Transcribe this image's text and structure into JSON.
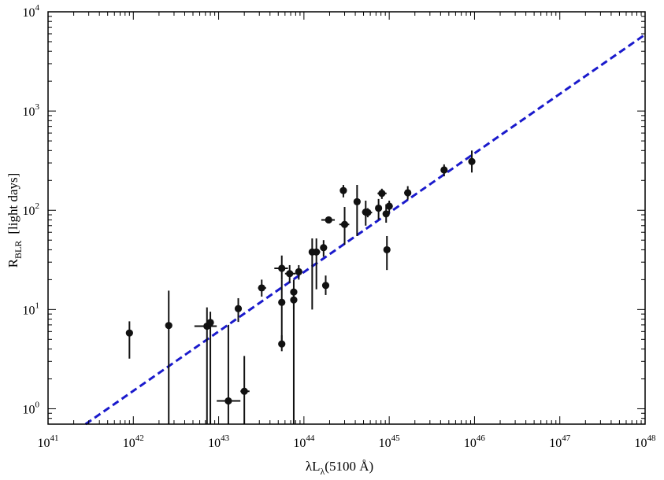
{
  "chart_data": {
    "type": "scatter",
    "x_scale": "log",
    "y_scale": "log",
    "xlim": [
      1e+41,
      1e+48
    ],
    "ylim": [
      0.7,
      10000
    ],
    "grid": false,
    "xlabel": {
      "main": "λL",
      "sub": "λ",
      "suffix": "(5100 Å)"
    },
    "ylabel": {
      "main": "R",
      "sub": "BLR",
      "suffix": "[light days]"
    },
    "x_ticks": [
      {
        "base": "10",
        "exp": "41",
        "value": 1e+41
      },
      {
        "base": "10",
        "exp": "42",
        "value": 1e+42
      },
      {
        "base": "10",
        "exp": "43",
        "value": 1e+43
      },
      {
        "base": "10",
        "exp": "44",
        "value": 1e+44
      },
      {
        "base": "10",
        "exp": "45",
        "value": 1e+45
      },
      {
        "base": "10",
        "exp": "46",
        "value": 1e+46
      },
      {
        "base": "10",
        "exp": "47",
        "value": 1e+47
      },
      {
        "base": "10",
        "exp": "48",
        "value": 1e+48
      }
    ],
    "y_ticks": [
      {
        "base": "10",
        "exp": "0",
        "value": 1
      },
      {
        "base": "10",
        "exp": "1",
        "value": 10
      },
      {
        "base": "10",
        "exp": "2",
        "value": 100
      },
      {
        "base": "10",
        "exp": "3",
        "value": 1000
      },
      {
        "base": "10",
        "exp": "4",
        "value": 10000
      }
    ],
    "points": [
      {
        "x": 9e+41,
        "y": 5.8,
        "xerr": [
          9e+41,
          9e+41
        ],
        "yerr": [
          3.2,
          7.6
        ]
      },
      {
        "x": 2.6e+42,
        "y": 6.9,
        "xerr": [
          2.6e+42,
          2.6e+42
        ],
        "yerr": [
          0.7,
          15.5
        ]
      },
      {
        "x": 7.3e+42,
        "y": 6.8,
        "xerr": [
          5.2e+42,
          9.5e+42
        ],
        "yerr": [
          0.7,
          10.5
        ]
      },
      {
        "x": 8e+42,
        "y": 7.4,
        "xerr": [
          8e+42,
          8e+42
        ],
        "yerr": [
          0.7,
          9.5
        ]
      },
      {
        "x": 1.3e+43,
        "y": 1.2,
        "xerr": [
          9.5e+42,
          1.8e+43
        ],
        "yerr": [
          0.7,
          7.0
        ]
      },
      {
        "x": 1.7e+43,
        "y": 10.2,
        "xerr": [
          1.6e+43,
          1.8e+43
        ],
        "yerr": [
          7.5,
          13.0
        ]
      },
      {
        "x": 2e+43,
        "y": 1.5,
        "xerr": [
          1.8e+43,
          2.3e+43
        ],
        "yerr": [
          0.7,
          3.4
        ]
      },
      {
        "x": 3.2e+43,
        "y": 16.5,
        "xerr": [
          2.9e+43,
          3.6e+43
        ],
        "yerr": [
          13.5,
          20.0
        ]
      },
      {
        "x": 5.5e+43,
        "y": 26.0,
        "xerr": [
          4.5e+43,
          6.5e+43
        ],
        "yerr": [
          20.0,
          35.0
        ]
      },
      {
        "x": 5.5e+43,
        "y": 11.8,
        "xerr": [
          5.5e+43,
          5.5e+43
        ],
        "yerr": [
          4.5,
          20.0
        ]
      },
      {
        "x": 5.5e+43,
        "y": 4.5,
        "xerr": [
          5.5e+43,
          5.5e+43
        ],
        "yerr": [
          3.8,
          5.5
        ]
      },
      {
        "x": 6.8e+43,
        "y": 23.0,
        "xerr": [
          6e+43,
          8e+43
        ],
        "yerr": [
          18.5,
          28.0
        ]
      },
      {
        "x": 7.6e+43,
        "y": 15.0,
        "xerr": [
          7.6e+43,
          7.6e+43
        ],
        "yerr": [
          10.0,
          20.0
        ]
      },
      {
        "x": 7.6e+43,
        "y": 12.5,
        "xerr": [
          7.6e+43,
          7.6e+43
        ],
        "yerr": [
          0.7,
          16.0
        ]
      },
      {
        "x": 8.7e+43,
        "y": 24.0,
        "xerr": [
          8e+43,
          9.5e+43
        ],
        "yerr": [
          20.0,
          28.0
        ]
      },
      {
        "x": 1.25e+44,
        "y": 38.0,
        "xerr": [
          1.15e+44,
          1.4e+44
        ],
        "yerr": [
          10.0,
          52.0
        ]
      },
      {
        "x": 1.4e+44,
        "y": 38.0,
        "xerr": [
          1.3e+44,
          1.55e+44
        ],
        "yerr": [
          16.0,
          52.0
        ]
      },
      {
        "x": 1.7e+44,
        "y": 42.0,
        "xerr": [
          1.6e+44,
          1.85e+44
        ],
        "yerr": [
          34.0,
          50.0
        ]
      },
      {
        "x": 1.8e+44,
        "y": 17.5,
        "xerr": [
          1.8e+44,
          1.8e+44
        ],
        "yerr": [
          14.0,
          22.0
        ]
      },
      {
        "x": 1.95e+44,
        "y": 80.0,
        "xerr": [
          1.6e+44,
          2.3e+44
        ],
        "yerr": [
          74.0,
          86.0
        ]
      },
      {
        "x": 2.9e+44,
        "y": 158.0,
        "xerr": [
          2.9e+44,
          2.9e+44
        ],
        "yerr": [
          135.0,
          180.0
        ]
      },
      {
        "x": 3e+44,
        "y": 72.0,
        "xerr": [
          2.6e+44,
          3.4e+44
        ],
        "yerr": [
          45.0,
          108.0
        ]
      },
      {
        "x": 4.2e+44,
        "y": 122.0,
        "xerr": [
          4e+44,
          4.4e+44
        ],
        "yerr": [
          55.0,
          180.0
        ]
      },
      {
        "x": 5.3e+44,
        "y": 96.0,
        "xerr": [
          4.8e+44,
          5.9e+44
        ],
        "yerr": [
          70.0,
          125.0
        ]
      },
      {
        "x": 5.6e+44,
        "y": 95.0,
        "xerr": [
          5e+44,
          6.3e+44
        ],
        "yerr": [
          85.0,
          105.0
        ]
      },
      {
        "x": 7.5e+44,
        "y": 105.0,
        "xerr": [
          7.5e+44,
          7.5e+44
        ],
        "yerr": [
          80.0,
          130.0
        ]
      },
      {
        "x": 8.2e+44,
        "y": 148.0,
        "xerr": [
          7.3e+44,
          9.3e+44
        ],
        "yerr": [
          130.0,
          165.0
        ]
      },
      {
        "x": 9.2e+44,
        "y": 92.0,
        "xerr": [
          8.5e+44,
          1e+45
        ],
        "yerr": [
          75.0,
          115.0
        ]
      },
      {
        "x": 9.4e+44,
        "y": 40.0,
        "xerr": [
          9.4e+44,
          9.4e+44
        ],
        "yerr": [
          25.0,
          55.0
        ]
      },
      {
        "x": 1e+45,
        "y": 110.0,
        "xerr": [
          9.5e+44,
          1.1e+45
        ],
        "yerr": [
          95.0,
          125.0
        ]
      },
      {
        "x": 1.65e+45,
        "y": 150.0,
        "xerr": [
          1.5e+45,
          1.8e+45
        ],
        "yerr": [
          128.0,
          175.0
        ]
      },
      {
        "x": 4.4e+45,
        "y": 255.0,
        "xerr": [
          4.2e+45,
          4.6e+45
        ],
        "yerr": [
          220.0,
          290.0
        ]
      },
      {
        "x": 9.3e+45,
        "y": 310.0,
        "xerr": [
          8.8e+45,
          9.8e+45
        ],
        "yerr": [
          240.0,
          400.0
        ]
      }
    ],
    "fit_line": {
      "style": "dashed",
      "color": "#1a1acc",
      "x": [
        2.75e+41,
        1e+48
      ],
      "y": [
        0.7,
        5900
      ]
    },
    "marker_color": "#111111"
  }
}
